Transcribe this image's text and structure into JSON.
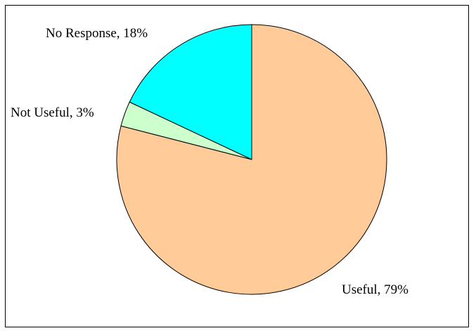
{
  "chart_data": {
    "type": "pie",
    "title": "",
    "slices": [
      {
        "label": "Useful, 79%",
        "category": "Useful",
        "value": 79,
        "color": "#FFCC99"
      },
      {
        "label": "Not Useful, 3%",
        "category": "Not Useful",
        "value": 3,
        "color": "#CCFFCC"
      },
      {
        "label": "No Response, 18%",
        "category": "No Response",
        "value": 18,
        "color": "#00FFFF"
      }
    ],
    "start_angle": "12 o'clock",
    "direction": "clockwise",
    "legend": "none",
    "outline_color": "#000000"
  }
}
